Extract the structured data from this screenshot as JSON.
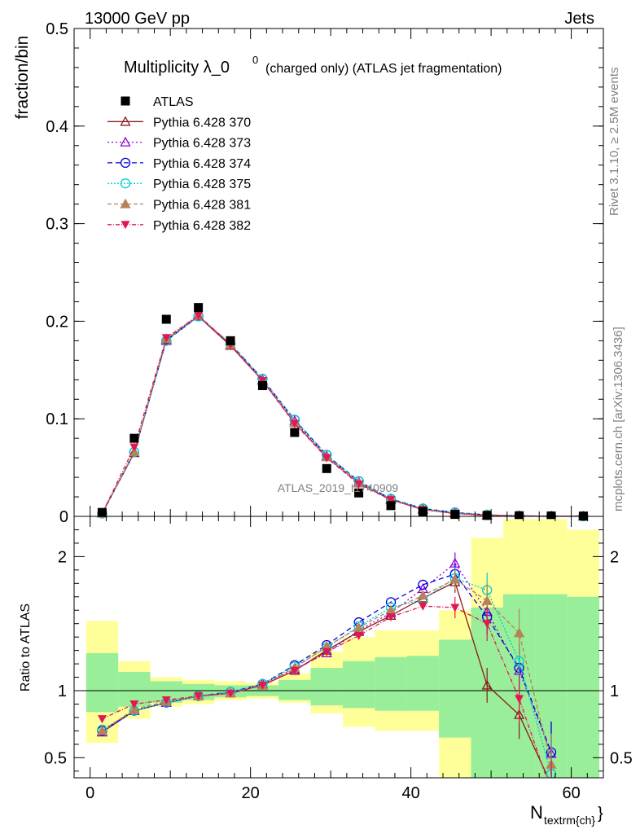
{
  "header": {
    "left": "13000 GeV pp",
    "right": "Jets"
  },
  "title": {
    "prefix": "Multiplicity λ_0",
    "sup": "0",
    "suffix": "(charged only) (ATLAS jet fragmentation)"
  },
  "side_labels": {
    "rivet": "Rivet 3.1.10, ≥ 2.5M events",
    "mcplots": "mcplots.cern.ch [arXiv:1306.3436]"
  },
  "watermark": "ATLAS_2019_I1740909",
  "chart_data": [
    {
      "type": "scatter",
      "panel": "main",
      "ylabel": "fraction/bin",
      "xlim": [
        -2,
        64
      ],
      "ylim": [
        0,
        0.5
      ],
      "yticks": [
        "0",
        "0.1",
        "0.2",
        "0.3",
        "0.4",
        "0.5"
      ],
      "legend_placement": "top-left",
      "x": [
        1.5,
        5.5,
        9.5,
        13.5,
        17.5,
        21.5,
        25.5,
        29.5,
        33.5,
        37.5,
        41.5,
        45.5,
        49.5,
        53.5,
        57.5,
        61.5
      ],
      "data": {
        "name": "ATLAS",
        "values": [
          0.004,
          0.08,
          0.202,
          0.214,
          0.18,
          0.134,
          0.086,
          0.049,
          0.024,
          0.011,
          0.005,
          0.002,
          0.001,
          0.0006,
          0.0004,
          0.0003
        ]
      },
      "series": [
        {
          "name": "Pythia 6.428 370",
          "color": "#8b1a1a",
          "dash": "",
          "marker": "triangle-open",
          "values": [
            0.003,
            0.065,
            0.181,
            0.205,
            0.175,
            0.139,
            0.096,
            0.061,
            0.034,
            0.017,
            0.007,
            0.003,
            0.001,
            0.0004,
            0.0002,
            0.0001
          ]
        },
        {
          "name": "Pythia 6.428 373",
          "color": "#9400d3",
          "dash": "2,3",
          "marker": "triangle-open",
          "values": [
            0.003,
            0.066,
            0.18,
            0.205,
            0.176,
            0.14,
            0.098,
            0.062,
            0.035,
            0.018,
            0.008,
            0.004,
            0.0015,
            0.0005,
            0.0002,
            0.0001
          ]
        },
        {
          "name": "Pythia 6.428 374",
          "color": "#0000dd",
          "dash": "6,4",
          "marker": "circle-open",
          "values": [
            0.003,
            0.066,
            0.18,
            0.205,
            0.177,
            0.141,
            0.099,
            0.063,
            0.036,
            0.018,
            0.008,
            0.004,
            0.0015,
            0.0005,
            0.0002,
            0.0001
          ]
        },
        {
          "name": "Pythia 6.428 375",
          "color": "#00cccc",
          "dash": "2,2",
          "marker": "circle-open",
          "values": [
            0.003,
            0.066,
            0.18,
            0.205,
            0.177,
            0.141,
            0.099,
            0.063,
            0.036,
            0.018,
            0.008,
            0.004,
            0.0015,
            0.0005,
            0.0002,
            0.0001
          ]
        },
        {
          "name": "Pythia 6.428 381",
          "color": "#b5835a",
          "dash": "5,3",
          "marker": "triangle-filled",
          "values": [
            0.003,
            0.066,
            0.182,
            0.206,
            0.176,
            0.139,
            0.096,
            0.061,
            0.034,
            0.017,
            0.007,
            0.003,
            0.0014,
            0.0005,
            0.0002,
            0.0001
          ]
        },
        {
          "name": "Pythia 6.428 382",
          "color": "#e01a50",
          "dash": "5,2,1,2",
          "marker": "triangle-down-filled",
          "values": [
            0.003,
            0.071,
            0.183,
            0.206,
            0.176,
            0.139,
            0.095,
            0.06,
            0.033,
            0.017,
            0.007,
            0.003,
            0.0013,
            0.0005,
            0.0002,
            0.0001
          ]
        }
      ]
    },
    {
      "type": "line",
      "panel": "ratio",
      "ylabel": "Ratio to ATLAS",
      "xlabel": "N",
      "xlabel_sub": "textrm{ch}",
      "xlabel_tail": "}",
      "xlim": [
        -2,
        64
      ],
      "ylim": [
        0.35,
        2.3
      ],
      "yticks": [
        "0.5",
        "1",
        "2"
      ],
      "xticks": [
        "0",
        "20",
        "40",
        "60"
      ],
      "grid": false,
      "bin_edges": [
        -0.5,
        3.5,
        7.5,
        11.5,
        15.5,
        19.5,
        23.5,
        27.5,
        31.5,
        35.5,
        39.5,
        43.5,
        47.5,
        51.5,
        55.5,
        59.5,
        63.5
      ],
      "band_green": [
        [
          0.84,
          1.28
        ],
        [
          0.88,
          1.14
        ],
        [
          0.91,
          1.07
        ],
        [
          0.93,
          1.05
        ],
        [
          0.95,
          1.04
        ],
        [
          0.96,
          1.04
        ],
        [
          0.93,
          1.08
        ],
        [
          0.89,
          1.17
        ],
        [
          0.87,
          1.22
        ],
        [
          0.85,
          1.25
        ],
        [
          0.85,
          1.26
        ],
        [
          0.65,
          1.38
        ],
        [
          0.1,
          1.62
        ],
        [
          0.1,
          1.72
        ],
        [
          0.1,
          1.72
        ],
        [
          0.1,
          1.7
        ]
      ],
      "band_yellow": [
        [
          0.61,
          1.52
        ],
        [
          0.79,
          1.22
        ],
        [
          0.88,
          1.1
        ],
        [
          0.9,
          1.08
        ],
        [
          0.93,
          1.07
        ],
        [
          0.94,
          1.06
        ],
        [
          0.91,
          1.13
        ],
        [
          0.83,
          1.29
        ],
        [
          0.73,
          1.4
        ],
        [
          0.7,
          1.45
        ],
        [
          0.7,
          1.45
        ],
        [
          0.2,
          1.6
        ],
        [
          0.1,
          2.14
        ],
        [
          0.1,
          2.28
        ],
        [
          0.1,
          2.28
        ],
        [
          0.1,
          2.2
        ]
      ],
      "reference": 1,
      "x": [
        1.5,
        5.5,
        9.5,
        13.5,
        17.5,
        21.5,
        25.5,
        29.5,
        33.5,
        37.5,
        41.5,
        45.5,
        49.5,
        53.5,
        57.5
      ],
      "series": [
        {
          "name": "Pythia 6.428 370",
          "values": [
            0.69,
            0.85,
            0.91,
            0.96,
            0.98,
            1.04,
            1.15,
            1.3,
            1.44,
            1.56,
            1.69,
            1.81,
            1.04,
            0.82,
            0.3
          ]
        },
        {
          "name": "Pythia 6.428 373",
          "values": [
            0.69,
            0.85,
            0.91,
            0.96,
            0.98,
            1.05,
            1.16,
            1.28,
            1.45,
            1.58,
            1.76,
            1.95,
            1.59,
            1.15,
            0.53
          ]
        },
        {
          "name": "Pythia 6.428 374",
          "values": [
            0.7,
            0.85,
            0.91,
            0.96,
            0.99,
            1.05,
            1.19,
            1.34,
            1.51,
            1.66,
            1.79,
            1.87,
            1.55,
            1.17,
            0.54
          ]
        },
        {
          "name": "Pythia 6.428 375",
          "values": [
            0.71,
            0.85,
            0.91,
            0.96,
            0.99,
            1.05,
            1.18,
            1.32,
            1.48,
            1.62,
            1.68,
            1.84,
            1.75,
            1.22,
            0.38
          ]
        },
        {
          "name": "Pythia 6.428 381",
          "values": [
            0.7,
            0.86,
            0.92,
            0.96,
            0.98,
            1.04,
            1.17,
            1.33,
            1.47,
            1.6,
            1.71,
            1.83,
            1.67,
            1.43,
            0.45
          ]
        },
        {
          "name": "Pythia 6.428 382",
          "values": [
            0.79,
            0.9,
            0.93,
            0.96,
            0.98,
            1.04,
            1.15,
            1.29,
            1.41,
            1.55,
            1.63,
            1.62,
            1.5,
            0.94,
            0.25
          ]
        }
      ]
    }
  ]
}
